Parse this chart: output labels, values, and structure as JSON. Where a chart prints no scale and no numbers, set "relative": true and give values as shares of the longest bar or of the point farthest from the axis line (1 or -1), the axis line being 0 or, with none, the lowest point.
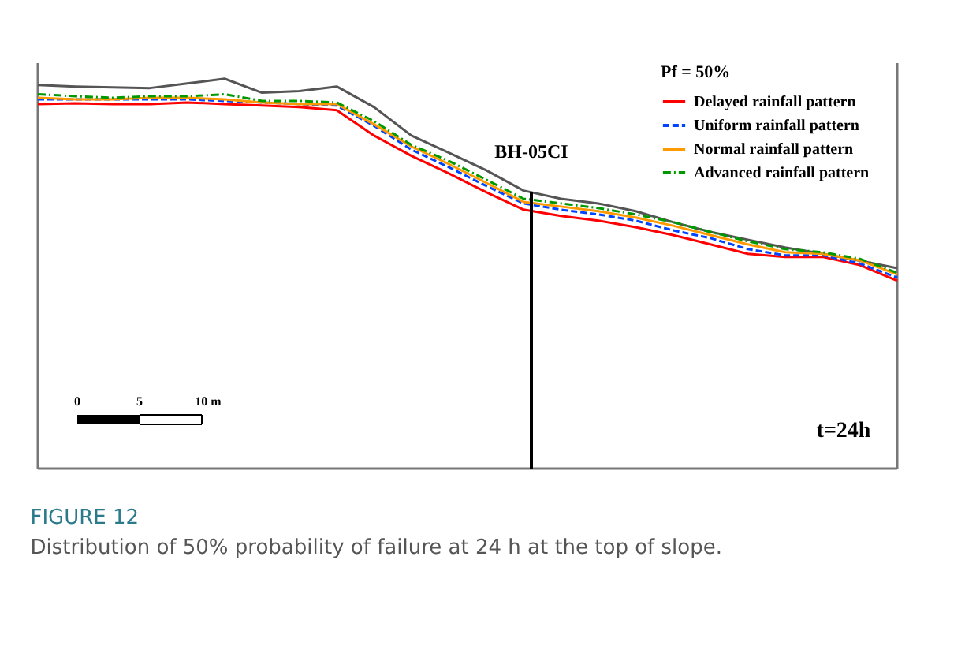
{
  "chart_data": {
    "type": "line",
    "relative": true,
    "title": "FIGURE 12",
    "subtitle": "Distribution of 50% probability of failure at 24 h at the top of slope.",
    "legend_title": "Pf = 50%",
    "legend": "top right",
    "categories": [
      null,
      null,
      null,
      null,
      null,
      null,
      null,
      null,
      null,
      null,
      null,
      null,
      null,
      null,
      null,
      null,
      null,
      null,
      null,
      null,
      null,
      null,
      null,
      null
    ],
    "series": [
      {
        "color": "#555555",
        "line_style": "solid",
        "values": [
          0.984,
          0.98,
          0.978,
          0.976,
          0.988,
          1,
          0.964,
          0.968,
          0.98,
          0.927,
          0.854,
          0.81,
          0.765,
          0.713,
          0.692,
          0.68,
          0.66,
          0.632,
          0.607,
          0.587,
          0.567,
          0.551,
          0.533,
          0.514
        ]
      },
      {
        "name": "Delayed rainfall pattern",
        "color": "#ff0000",
        "line_style": "solid",
        "values": [
          0.935,
          0.937,
          0.935,
          0.935,
          0.939,
          0.935,
          0.931,
          0.927,
          0.919,
          0.854,
          0.802,
          0.757,
          0.709,
          0.664,
          0.648,
          0.636,
          0.619,
          0.599,
          0.575,
          0.551,
          0.543,
          0.543,
          0.522,
          0.482
        ]
      },
      {
        "name": "Uniform rainfall pattern",
        "color": "#0044ff",
        "line_style": "dashed",
        "values": [
          0.947,
          0.947,
          0.947,
          0.947,
          0.947,
          0.943,
          0.939,
          0.935,
          0.931,
          0.879,
          0.818,
          0.773,
          0.725,
          0.68,
          0.664,
          0.652,
          0.636,
          0.611,
          0.591,
          0.563,
          0.547,
          0.547,
          0.526,
          0.49
        ]
      },
      {
        "name": "Normal  rainfall pattern",
        "color": "#ff9900",
        "line_style": "solid",
        "values": [
          0.951,
          0.947,
          0.947,
          0.951,
          0.951,
          0.947,
          0.939,
          0.935,
          0.935,
          0.883,
          0.826,
          0.781,
          0.733,
          0.684,
          0.672,
          0.66,
          0.644,
          0.623,
          0.599,
          0.575,
          0.555,
          0.551,
          0.534,
          0.498
        ]
      },
      {
        "name": "Advanced rainfall pattern",
        "color": "#009900",
        "line_style": "dotted",
        "values": [
          0.96,
          0.955,
          0.951,
          0.955,
          0.955,
          0.96,
          0.943,
          0.943,
          0.939,
          0.891,
          0.83,
          0.789,
          0.741,
          0.692,
          0.68,
          0.668,
          0.652,
          0.632,
          0.607,
          0.583,
          0.563,
          0.555,
          0.538,
          0.502
        ]
      }
    ],
    "annotations": [
      "0",
      "5",
      "10 m",
      "t=24h",
      "BH-05CI"
    ]
  }
}
